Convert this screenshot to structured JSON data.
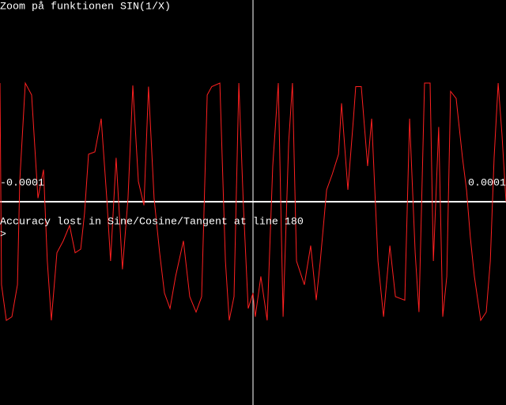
{
  "chart_data": {
    "type": "line",
    "title": "Zoom på funktionen SIN(1/X)",
    "annotations": [
      "Accuracy lost in Sine/Cosine/Tangent at line 180",
      ">"
    ],
    "xlim": [
      -0.0001,
      0.0001
    ],
    "xticks": [
      -0.0001,
      0.0001
    ],
    "ylim": [
      -1,
      1
    ],
    "series": [
      {
        "name": "SIN(1/X)",
        "color": "#ff2020",
        "x": [
          -0.0001,
          -9.94e-05,
          -9.75e-05,
          -9.53e-05,
          -9.31e-05,
          -9.22e-05,
          -9e-05,
          -8.75e-05,
          -8.5e-05,
          -8.28e-05,
          -8.13e-05,
          -7.97e-05,
          -7.75e-05,
          -7.5e-05,
          -7.25e-05,
          -7.03e-05,
          -6.81e-05,
          -6.66e-05,
          -6.5e-05,
          -6.25e-05,
          -6e-05,
          -5.78e-05,
          -5.63e-05,
          -5.41e-05,
          -5.16e-05,
          -4.94e-05,
          -4.75e-05,
          -4.53e-05,
          -4.31e-05,
          -4.13e-05,
          -3.91e-05,
          -3.69e-05,
          -3.5e-05,
          -3.28e-05,
          -3.06e-05,
          -2.75e-05,
          -2.5e-05,
          -2.25e-05,
          -2.03e-05,
          -1.81e-05,
          -1.63e-05,
          -1.31e-05,
          -1.09e-05,
          -9.4e-06,
          -7.5e-06,
          -5.6e-06,
          -3.8e-06,
          -1.9e-06,
          0,
          9e-07,
          3.1e-06,
          5.6e-06,
          7.8e-06,
          1e-05,
          1.19e-05,
          1.41e-05,
          1.56e-05,
          1.72e-05,
          2.03e-05,
          2.28e-05,
          2.5e-05,
          2.66e-05,
          2.91e-05,
          3.13e-05,
          3.38e-05,
          3.5e-05,
          3.75e-05,
          3.97e-05,
          4.06e-05,
          4.28e-05,
          4.53e-05,
          4.69e-05,
          4.94e-05,
          5.16e-05,
          5.41e-05,
          5.63e-05,
          6e-05,
          6.19e-05,
          6.41e-05,
          6.56e-05,
          6.78e-05,
          7e-05,
          7.13e-05,
          7.34e-05,
          7.5e-05,
          7.66e-05,
          7.81e-05,
          8.03e-05,
          8.28e-05,
          8.44e-05,
          8.59e-05,
          8.75e-05,
          9e-05,
          9.22e-05,
          9.38e-05,
          9.53e-05,
          9.69e-05,
          9.84e-05,
          0.0001
        ],
        "values": [
          1,
          -0.7,
          -1,
          -0.97,
          -0.7,
          0.17,
          1,
          0.9,
          0.03,
          0.27,
          -0.5,
          -1,
          -0.43,
          -0.33,
          -0.2,
          -0.43,
          -0.4,
          -0.1,
          0.4,
          0.42,
          0.7,
          0.03,
          -0.5,
          0.37,
          -0.57,
          0.03,
          0.98,
          0.17,
          -0.03,
          0.97,
          0.03,
          -0.43,
          -0.77,
          -0.9,
          -0.63,
          -0.33,
          -0.8,
          -0.93,
          -0.8,
          0.9,
          0.97,
          1,
          -0.5,
          -1,
          -0.8,
          1,
          -0.03,
          -0.9,
          -0.77,
          -0.97,
          -0.63,
          -1,
          0.3,
          1,
          -0.97,
          0.5,
          1,
          -0.5,
          -0.7,
          -0.37,
          -0.83,
          -0.5,
          0.1,
          0.23,
          0.4,
          0.83,
          0.1,
          0.7,
          0.97,
          0.97,
          0.3,
          0.7,
          -0.5,
          -0.97,
          -0.37,
          -0.8,
          -0.83,
          0.7,
          -0.43,
          -0.93,
          1,
          1,
          -0.5,
          0.63,
          -0.97,
          -0.63,
          0.93,
          0.87,
          0.37,
          0.1,
          -0.3,
          -0.63,
          -1,
          -0.93,
          -0.5,
          0.37,
          1,
          0.57,
          0
        ]
      }
    ]
  }
}
